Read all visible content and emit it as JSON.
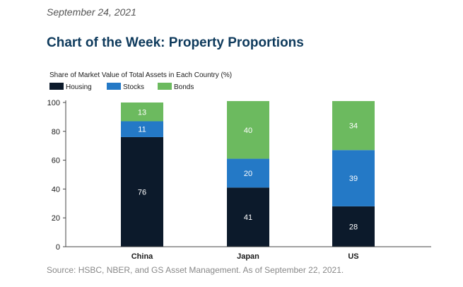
{
  "header": {
    "date": "September 24, 2021",
    "title": "Chart of the Week: Property Proportions"
  },
  "footer": {
    "source": "Source: HSBC, NBER, and GS Asset Management. As of September 22, 2021."
  },
  "chart_data": {
    "type": "bar",
    "stacked": true,
    "title": "Share of Market Value of Total Assets in Each Country (%)",
    "categories": [
      "China",
      "Japan",
      "US"
    ],
    "series": [
      {
        "name": "Housing",
        "values": [
          76,
          41,
          28
        ],
        "color": "#0c1a2b"
      },
      {
        "name": "Stocks",
        "values": [
          11,
          20,
          39
        ],
        "color": "#2479c6"
      },
      {
        "name": "Bonds",
        "values": [
          13,
          40,
          34
        ],
        "color": "#6cba5f"
      }
    ],
    "ylim": [
      0,
      100
    ],
    "yticks": [
      0,
      20,
      40,
      60,
      80,
      100
    ],
    "legend_position": "top-left",
    "grid": false
  }
}
